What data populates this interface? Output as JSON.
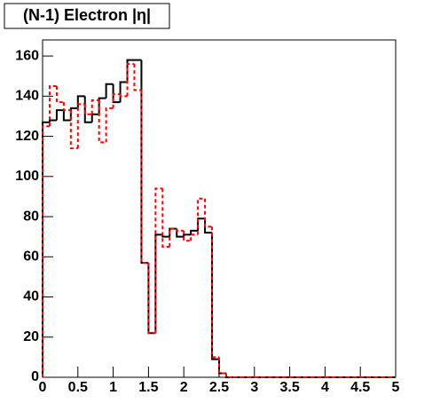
{
  "chart_data": {
    "type": "histogram",
    "title": "(N-1) Electron |η|",
    "bins": [
      0,
      0.1,
      0.2,
      0.3,
      0.4,
      0.5,
      0.6,
      0.7,
      0.8,
      0.9,
      1,
      1.1,
      1.2,
      1.3,
      1.4,
      1.5,
      1.6,
      1.7,
      1.8,
      1.9,
      2,
      2.1,
      2.2,
      2.3,
      2.4,
      2.5,
      2.6,
      2.7,
      2.8,
      2.9,
      3,
      3.1,
      3.2,
      3.3,
      3.4,
      3.5,
      3.6,
      3.7,
      3.8,
      3.9,
      4,
      4.1,
      4.2,
      4.3,
      4.4,
      4.5,
      4.6,
      4.7,
      4.8,
      4.9,
      5
    ],
    "series": [
      {
        "color": "#000000",
        "style": "solid",
        "values": [
          127,
          128,
          133,
          128,
          134,
          140,
          127,
          131,
          139,
          146,
          137,
          147,
          158,
          158,
          57,
          22,
          71,
          70,
          74,
          70,
          71,
          73,
          79,
          72,
          9,
          2,
          0,
          0,
          0,
          0,
          0,
          0,
          0,
          0,
          0,
          0,
          0,
          0,
          0,
          0,
          0,
          0,
          0,
          0,
          0,
          0,
          0,
          0,
          0,
          0
        ]
      },
      {
        "color": "#ff0000",
        "style": "dashed",
        "values": [
          125,
          145,
          137,
          133,
          114,
          136,
          131,
          138,
          117,
          134,
          141,
          140,
          156,
          143,
          57,
          22,
          94,
          65,
          74,
          73,
          68,
          71,
          89,
          75,
          10,
          2,
          0,
          0,
          0,
          0,
          0,
          0,
          0,
          0,
          0,
          0,
          0,
          0,
          0,
          0,
          0,
          0,
          0,
          0,
          0,
          0,
          0,
          0,
          0,
          0
        ]
      }
    ],
    "xlim": [
      0,
      5
    ],
    "xticks": [
      0,
      0.5,
      1,
      1.5,
      2,
      2.5,
      3,
      3.5,
      4,
      4.5,
      5
    ],
    "ylim": [
      0,
      168
    ],
    "yticks": [
      0,
      20,
      40,
      60,
      80,
      100,
      120,
      140,
      160
    ]
  }
}
